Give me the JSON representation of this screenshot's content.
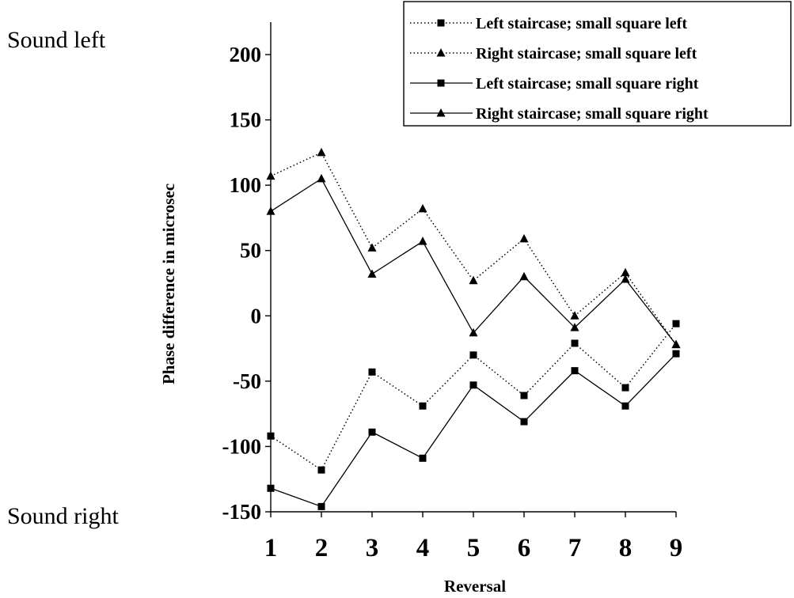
{
  "annotations": {
    "top": "Sound left",
    "bottom": "Sound right"
  },
  "chart_data": {
    "type": "line",
    "xlabel": "Reversal",
    "ylabel": "Phase difference in microsec",
    "categories": [
      "1",
      "2",
      "3",
      "4",
      "5",
      "6",
      "7",
      "8",
      "9"
    ],
    "x": [
      1,
      2,
      3,
      4,
      5,
      6,
      7,
      8,
      9
    ],
    "ylim": [
      -150,
      225
    ],
    "yticks": [
      -150,
      -100,
      -50,
      0,
      50,
      100,
      150,
      200
    ],
    "grid": false,
    "legend_position": "top-right",
    "series": [
      {
        "name": "Left staircase; small square left",
        "line": "dotted",
        "marker": "square",
        "values": [
          -92,
          -118,
          -43,
          -69,
          -30,
          -61,
          -21,
          -55,
          -6
        ]
      },
      {
        "name": "Right staircase; small square left",
        "line": "dotted",
        "marker": "triangle",
        "values": [
          107,
          125,
          52,
          82,
          27,
          59,
          0,
          33,
          -22
        ]
      },
      {
        "name": "Left staircase; small square right",
        "line": "solid",
        "marker": "square",
        "values": [
          -132,
          -146,
          -89,
          -109,
          -53,
          -81,
          -42,
          -69,
          -29
        ]
      },
      {
        "name": "Right staircase; small square right",
        "line": "solid",
        "marker": "triangle",
        "values": [
          80,
          105,
          32,
          57,
          -13,
          30,
          -9,
          28,
          -22
        ]
      }
    ],
    "colors": {
      "line": "#000000",
      "background": "#ffffff"
    }
  }
}
